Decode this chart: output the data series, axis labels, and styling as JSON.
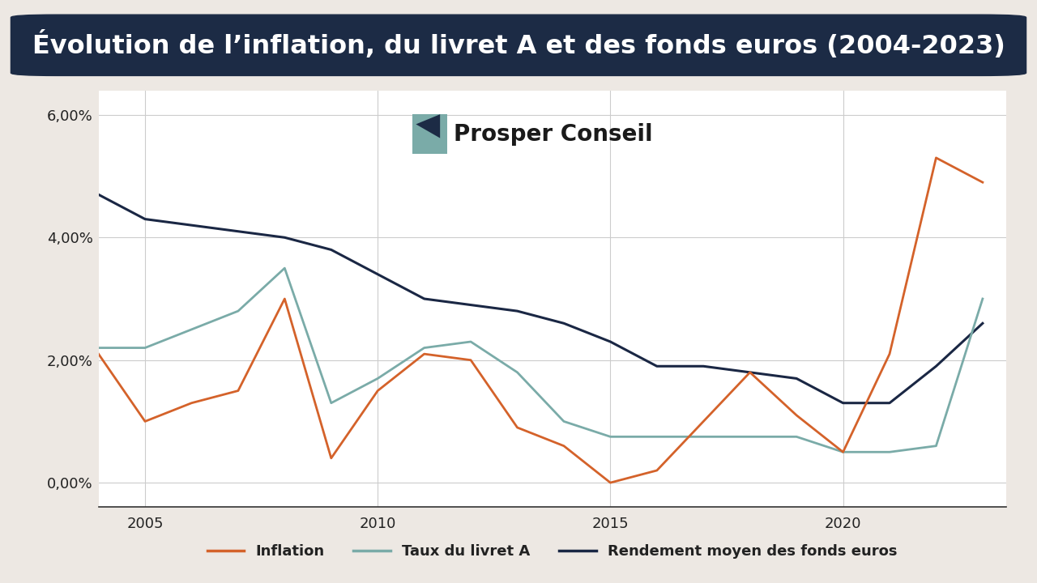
{
  "title": "Évolution de l’inflation, du livret A et des fonds euros (2004-2023)",
  "background_color": "#ede8e3",
  "chart_bg": "#ffffff",
  "years": [
    2004,
    2005,
    2006,
    2007,
    2008,
    2009,
    2010,
    2011,
    2012,
    2013,
    2014,
    2015,
    2016,
    2017,
    2018,
    2019,
    2020,
    2021,
    2022,
    2023
  ],
  "inflation": [
    0.021,
    0.01,
    0.013,
    0.015,
    0.03,
    0.004,
    0.015,
    0.021,
    0.02,
    0.009,
    0.006,
    0.0,
    0.002,
    0.01,
    0.018,
    0.011,
    0.005,
    0.021,
    0.053,
    0.049
  ],
  "livret_a": [
    0.022,
    0.022,
    0.025,
    0.028,
    0.035,
    0.013,
    0.017,
    0.022,
    0.023,
    0.018,
    0.01,
    0.0075,
    0.0075,
    0.0075,
    0.0075,
    0.0075,
    0.005,
    0.005,
    0.006,
    0.03
  ],
  "fonds_euros": [
    0.047,
    0.043,
    0.042,
    0.041,
    0.04,
    0.038,
    0.034,
    0.03,
    0.029,
    0.028,
    0.026,
    0.023,
    0.019,
    0.019,
    0.018,
    0.017,
    0.013,
    0.013,
    0.019,
    0.026
  ],
  "inflation_color": "#d4622a",
  "livret_a_color": "#7aaba8",
  "fonds_euros_color": "#1a2744",
  "yticks": [
    0.0,
    0.02,
    0.04,
    0.06
  ],
  "ytick_labels": [
    "0,00%",
    "2,00%",
    "4,00%",
    "6,00%"
  ],
  "xticks": [
    2005,
    2010,
    2015,
    2020
  ],
  "ylim": [
    -0.004,
    0.064
  ],
  "xlim_left": 2004,
  "xlim_right": 2023.5,
  "legend_inflation": "Inflation",
  "legend_livret": "Taux du livret A",
  "legend_fonds": "Rendement moyen des fonds euros",
  "watermark_text": "Prosper Conseil",
  "title_bg": "#1c2b45",
  "title_text_color": "#ffffff",
  "title_fontsize": 23,
  "legend_fontsize": 13,
  "tick_fontsize": 13,
  "logo_teal": "#7aaba8",
  "logo_dark": "#1c2b45"
}
